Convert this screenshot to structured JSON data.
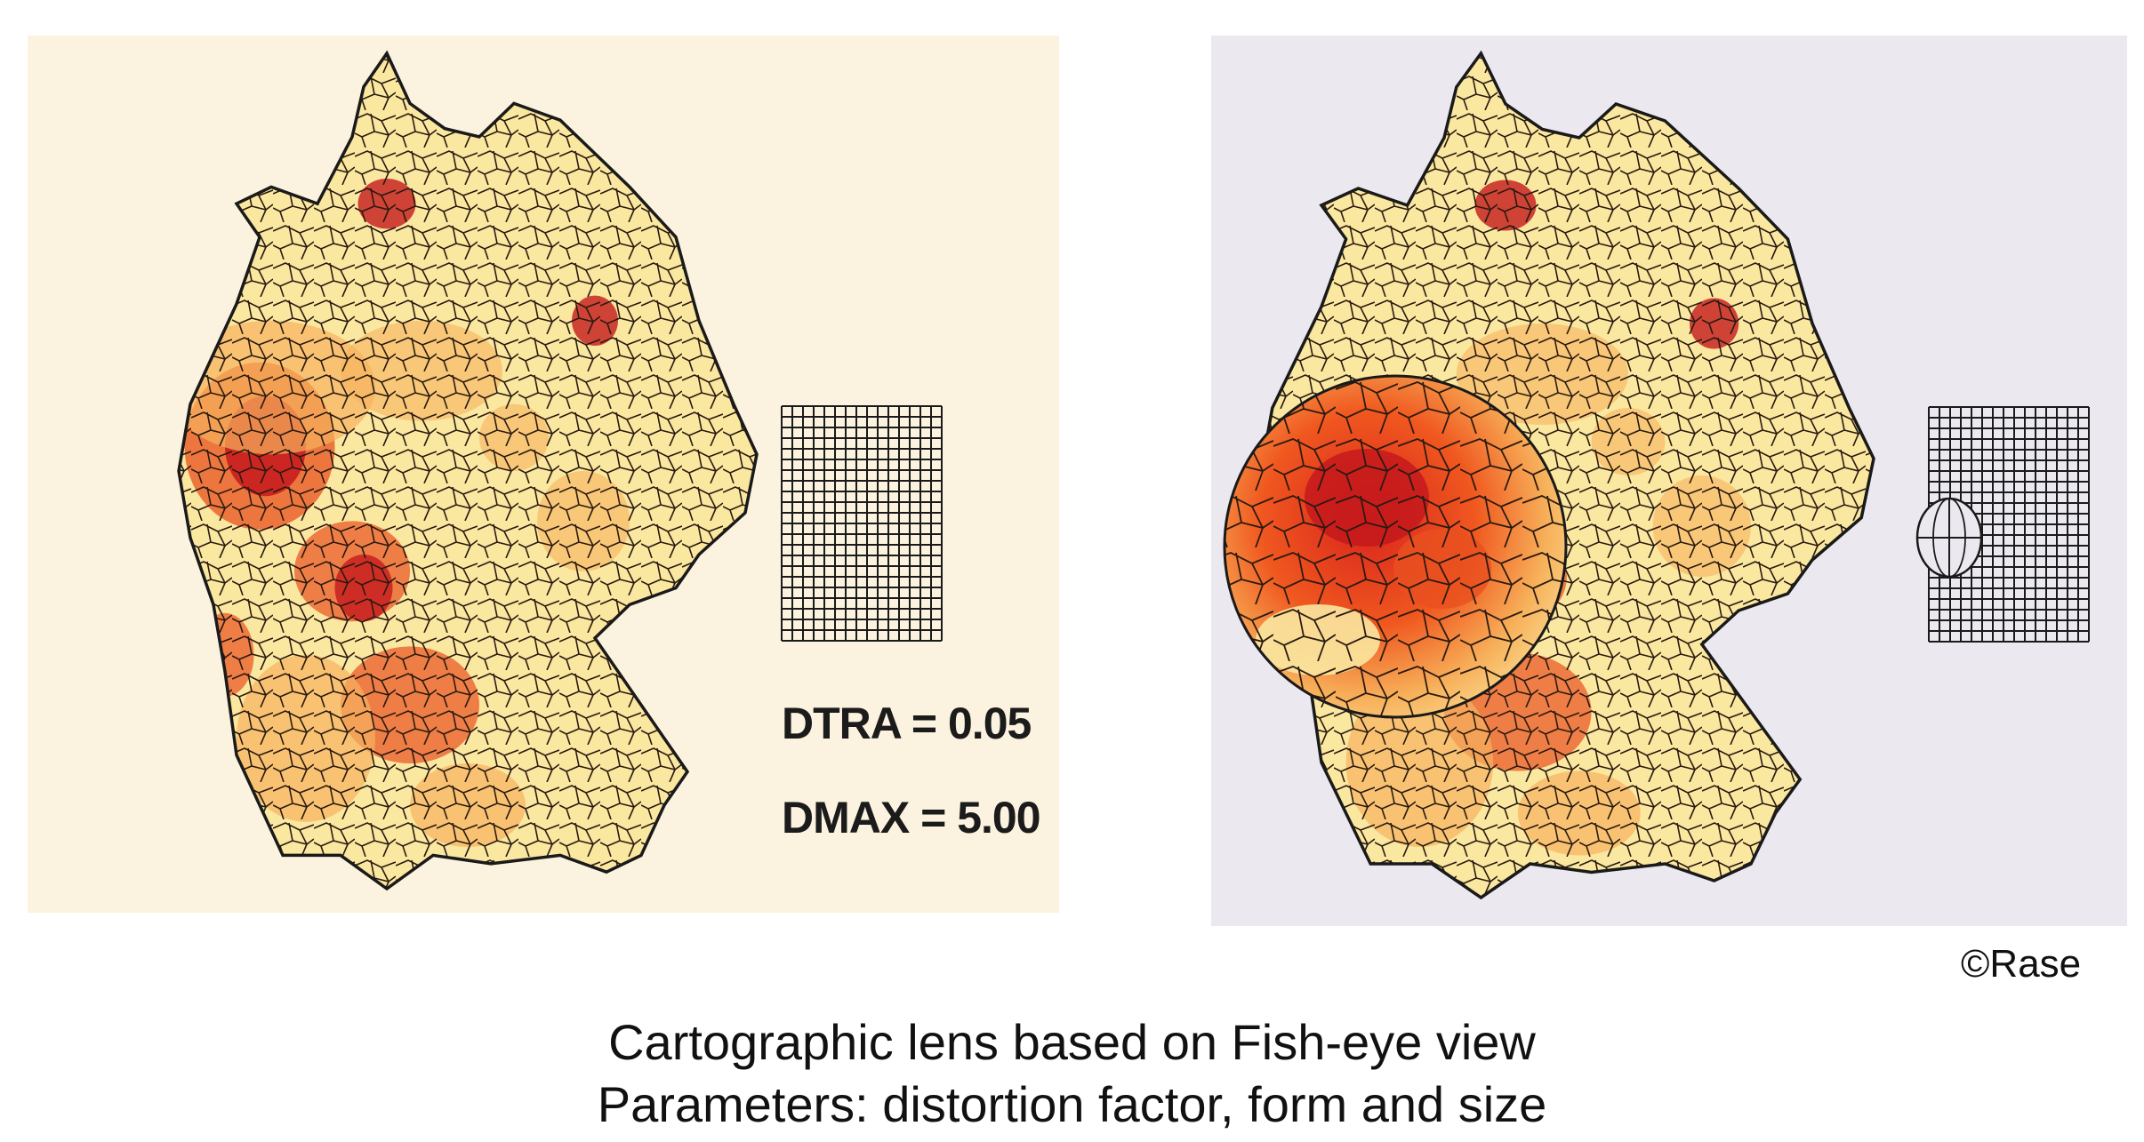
{
  "left_panel": {
    "params": {
      "dtra": "DTRA = 0.05",
      "dmax": "DMAX = 5.00"
    }
  },
  "right_panel": {},
  "credit": "©Rase",
  "caption": {
    "line1": "Cartographic lens based on Fish-eye view",
    "line2": "Parameters: distortion factor, form and size"
  },
  "colors": {
    "left_background": "#fbf3df",
    "right_background": "#ebe9ef",
    "density_low": "#fae7a0",
    "density_mid": "#f6b25e",
    "density_high": "#e8501f",
    "density_peak": "#c4191c",
    "border": "#1a1a1a"
  }
}
